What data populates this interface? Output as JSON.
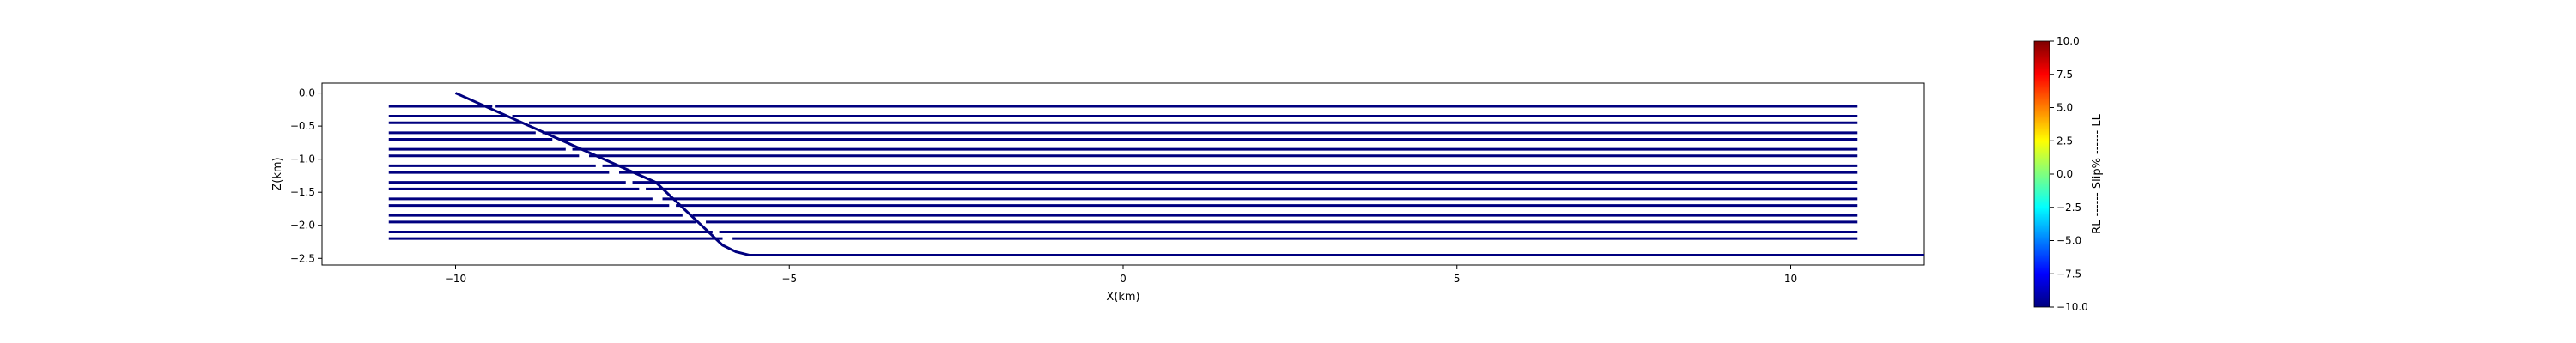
{
  "chart_data": [
    {
      "type": "line",
      "title": "",
      "xlabel": "X(km)",
      "ylabel": "Z(km)",
      "xlim": [
        -12.0,
        12.0
      ],
      "ylim": [
        -2.6,
        0.15
      ],
      "xticks": [
        -10,
        -5,
        0,
        5,
        10
      ],
      "xtick_labels": [
        "−10",
        "−5",
        "0",
        "5",
        "10"
      ],
      "yticks": [
        0.0,
        -0.5,
        -1.0,
        -1.5,
        -2.0,
        -2.5
      ],
      "ytick_labels": [
        "0.0",
        "−0.5",
        "−1.0",
        "−1.5",
        "−2.0",
        "−2.5"
      ],
      "grid": false,
      "line_color": "#00007f",
      "main_fault": {
        "x": [
          -10.0,
          -9.0,
          -8.0,
          -7.0,
          -6.0,
          -5.8,
          -5.6,
          -5.4,
          12.0
        ],
        "z": [
          0.0,
          -0.45,
          -0.9,
          -1.35,
          -2.3,
          -2.4,
          -2.45,
          -2.45,
          -2.45
        ]
      },
      "segments": [
        {
          "left": [
            -11.0,
            -9.45
          ],
          "right": [
            -9.4,
            11.0
          ],
          "z": -0.2
        },
        {
          "left": [
            -11.0,
            -9.25
          ],
          "right": [
            -9.15,
            11.0
          ],
          "z": -0.35
        },
        {
          "left": [
            -11.0,
            -9.0
          ],
          "right": [
            -8.9,
            11.0
          ],
          "z": -0.45
        },
        {
          "left": [
            -11.0,
            -8.8
          ],
          "right": [
            -8.7,
            11.0
          ],
          "z": -0.6
        },
        {
          "left": [
            -11.0,
            -8.55
          ],
          "right": [
            -8.45,
            11.0
          ],
          "z": -0.7
        },
        {
          "left": [
            -11.0,
            -8.35
          ],
          "right": [
            -8.25,
            11.0
          ],
          "z": -0.85
        },
        {
          "left": [
            -11.0,
            -8.15
          ],
          "right": [
            -8.0,
            11.0
          ],
          "z": -0.95
        },
        {
          "left": [
            -11.0,
            -7.9
          ],
          "right": [
            -7.8,
            11.0
          ],
          "z": -1.1
        },
        {
          "left": [
            -11.0,
            -7.7
          ],
          "right": [
            -7.55,
            11.0
          ],
          "z": -1.2
        },
        {
          "left": [
            -11.0,
            -7.45
          ],
          "right": [
            -7.35,
            11.0
          ],
          "z": -1.35
        },
        {
          "left": [
            -11.0,
            -7.25
          ],
          "right": [
            -7.15,
            11.0
          ],
          "z": -1.45
        },
        {
          "left": [
            -11.0,
            -7.05
          ],
          "right": [
            -6.9,
            11.0
          ],
          "z": -1.6
        },
        {
          "left": [
            -11.0,
            -6.8
          ],
          "right": [
            -6.7,
            11.0
          ],
          "z": -1.7
        },
        {
          "left": [
            -11.0,
            -6.6
          ],
          "right": [
            -6.45,
            11.0
          ],
          "z": -1.85
        },
        {
          "left": [
            -11.0,
            -6.4
          ],
          "right": [
            -6.25,
            11.0
          ],
          "z": -1.95
        },
        {
          "left": [
            -11.0,
            -6.15
          ],
          "right": [
            -6.05,
            11.0
          ],
          "z": -2.1
        },
        {
          "left": [
            -11.0,
            -6.0
          ],
          "right": [
            -5.85,
            11.0
          ],
          "z": -2.2
        }
      ]
    },
    {
      "type": "heatmap",
      "colorbar": true,
      "label": "RL ------ Slip% ------ LL",
      "ylim": [
        -10.0,
        10.0
      ],
      "ticks": [
        10.0,
        7.5,
        5.0,
        2.5,
        0.0,
        -2.5,
        -5.0,
        -7.5,
        -10.0
      ],
      "tick_labels": [
        "10.0",
        "7.5",
        "5.0",
        "2.5",
        "0.0",
        "−2.5",
        "−5.0",
        "−7.5",
        "−10.0"
      ],
      "colormap": "jet",
      "colormap_stops": [
        "#00007f",
        "#0000ff",
        "#007fff",
        "#00ffff",
        "#7fff7f",
        "#ffff00",
        "#ff7f00",
        "#ff0000",
        "#7f0000"
      ]
    }
  ]
}
